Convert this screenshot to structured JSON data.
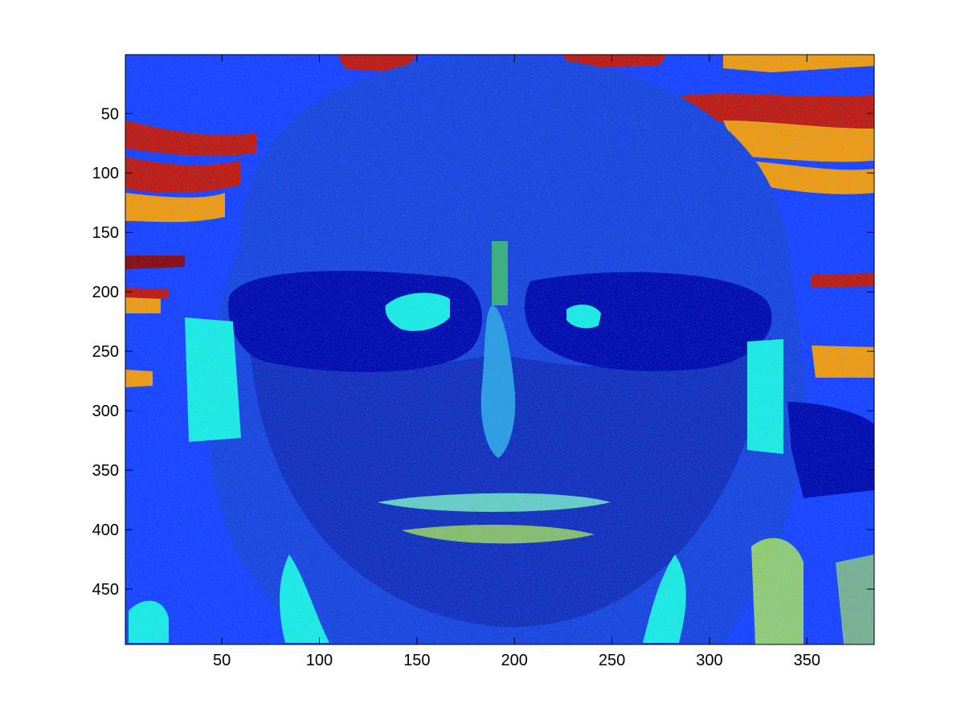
{
  "chart_data": {
    "type": "heatmap",
    "title": "",
    "xlabel": "",
    "ylabel": "",
    "colormap": "jet",
    "image_description_depicted": "pseudocolor-mapped portrait of a person wearing sunglasses",
    "xlim": [
      0.5,
      384.5
    ],
    "ylim": [
      0.5,
      496.5
    ],
    "y_reversed": true,
    "grid": false,
    "legend": "none",
    "x_ticks": [
      50,
      100,
      150,
      200,
      250,
      300,
      350
    ],
    "x_tick_labels": [
      "50",
      "100",
      "150",
      "200",
      "250",
      "300",
      "350"
    ],
    "y_ticks": [
      50,
      100,
      150,
      200,
      250,
      300,
      350,
      400,
      450
    ],
    "y_tick_labels": [
      "50",
      "100",
      "150",
      "200",
      "250",
      "300",
      "350",
      "400",
      "450"
    ],
    "colors": {
      "background_blue": "#1a3cff",
      "dark_blue": "#0000a8",
      "cyan": "#1ef0e0",
      "yellow_green": "#c8ff3c",
      "orange": "#ff9a00",
      "red": "#cc1100",
      "dark_red": "#900000"
    }
  }
}
